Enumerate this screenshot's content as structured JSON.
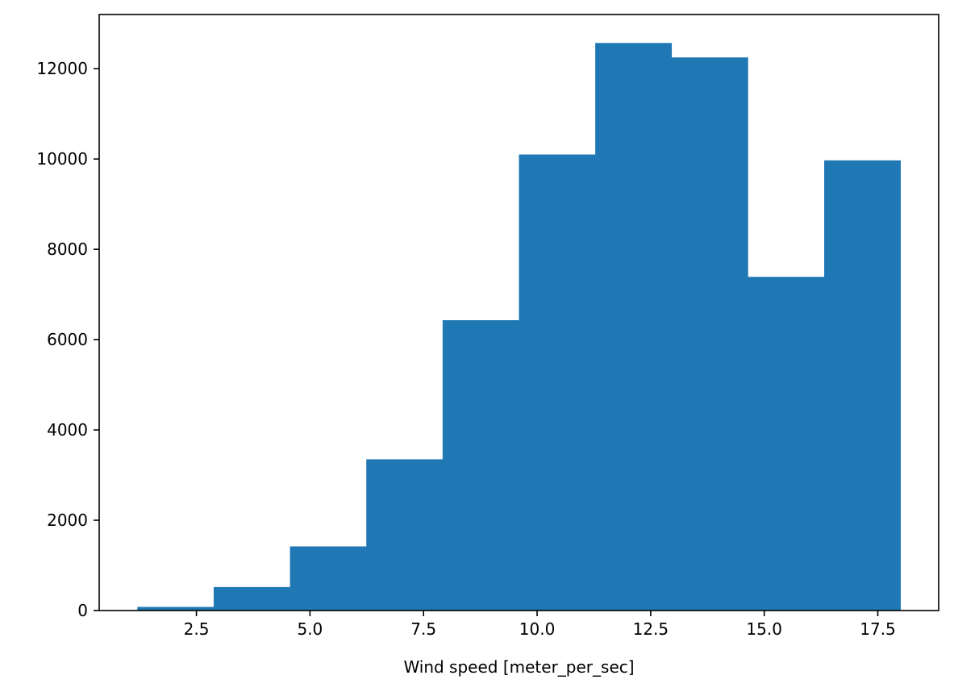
{
  "chart_data": {
    "type": "bar",
    "title": "",
    "xlabel": "Wind speed [meter_per_sec]",
    "ylabel": "",
    "bin_edges": [
      1.2,
      2.88,
      4.56,
      6.24,
      7.92,
      9.6,
      11.28,
      12.96,
      14.64,
      16.32,
      18.0
    ],
    "values": [
      80,
      520,
      1420,
      3350,
      6430,
      10100,
      12570,
      12250,
      7390,
      9970
    ],
    "xlim": [
      0.36,
      18.84
    ],
    "ylim": [
      0,
      13200
    ],
    "xticks": [
      2.5,
      5.0,
      7.5,
      10.0,
      12.5,
      15.0,
      17.5
    ],
    "xtick_labels": [
      "2.5",
      "5.0",
      "7.5",
      "10.0",
      "12.5",
      "15.0",
      "17.5"
    ],
    "yticks": [
      0,
      2000,
      4000,
      6000,
      8000,
      10000,
      12000
    ],
    "ytick_labels": [
      "0",
      "2000",
      "4000",
      "6000",
      "8000",
      "10000",
      "12000"
    ],
    "grid": false,
    "bar_color": "#1f77b4"
  }
}
